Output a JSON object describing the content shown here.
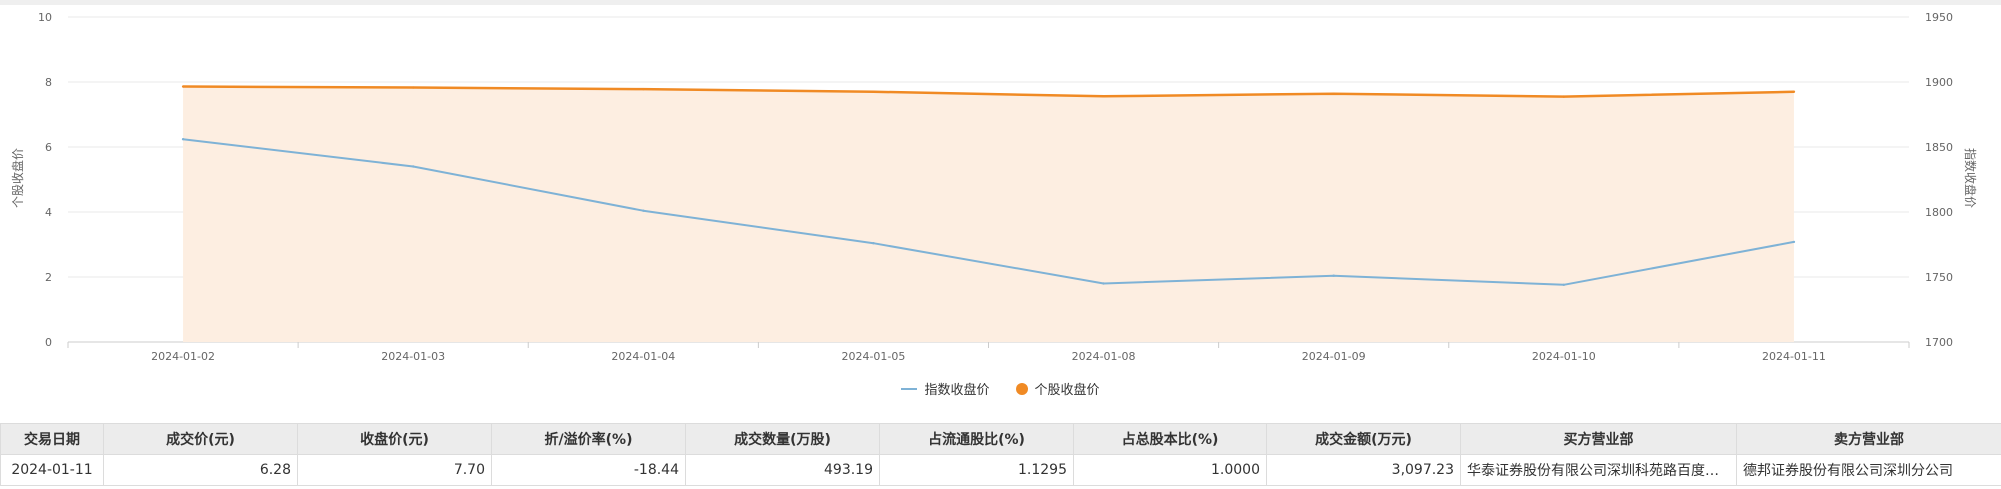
{
  "chart_data": {
    "type": "line",
    "categories": [
      "2024-01-02",
      "2024-01-03",
      "2024-01-04",
      "2024-01-05",
      "2024-01-08",
      "2024-01-09",
      "2024-01-10",
      "2024-01-11"
    ],
    "y_left": {
      "label": "个股收盘价",
      "ticks": [
        "0",
        "2",
        "4",
        "6",
        "8",
        "10"
      ],
      "range": [
        0,
        10
      ]
    },
    "y_right": {
      "label": "指数收盘价",
      "ticks": [
        "1700",
        "1750",
        "1800",
        "1850",
        "1900",
        "1950"
      ],
      "range": [
        1700,
        1950
      ]
    },
    "series": [
      {
        "name": "指数收盘价",
        "axis": "right",
        "style": "line",
        "color": "#7eb2d6",
        "values": [
          1856,
          1835,
          1801,
          1776,
          1745,
          1751,
          1744,
          1777
        ]
      },
      {
        "name": "个股收盘价",
        "axis": "left",
        "style": "area",
        "color": "#f08a24",
        "fill": "#fdeee1",
        "values": [
          7.86,
          7.83,
          7.78,
          7.7,
          7.56,
          7.64,
          7.55,
          7.7
        ]
      }
    ],
    "legend_position": "bottom",
    "grid": true
  },
  "table": {
    "headers": [
      "交易日期",
      "成交价(元)",
      "收盘价(元)",
      "折/溢价率(%)",
      "成交数量(万股)",
      "占流通股比(%)",
      "占总股本比(%)",
      "成交金额(万元)",
      "买方营业部",
      "卖方营业部"
    ],
    "rows": [
      [
        "2024-01-11",
        "6.28",
        "7.70",
        "-18.44",
        "493.19",
        "1.1295",
        "1.0000",
        "3,097.23",
        "华泰证券股份有限公司深圳科苑路百度国际大厦证券营业部",
        "德邦证券股份有限公司深圳分公司"
      ]
    ]
  }
}
